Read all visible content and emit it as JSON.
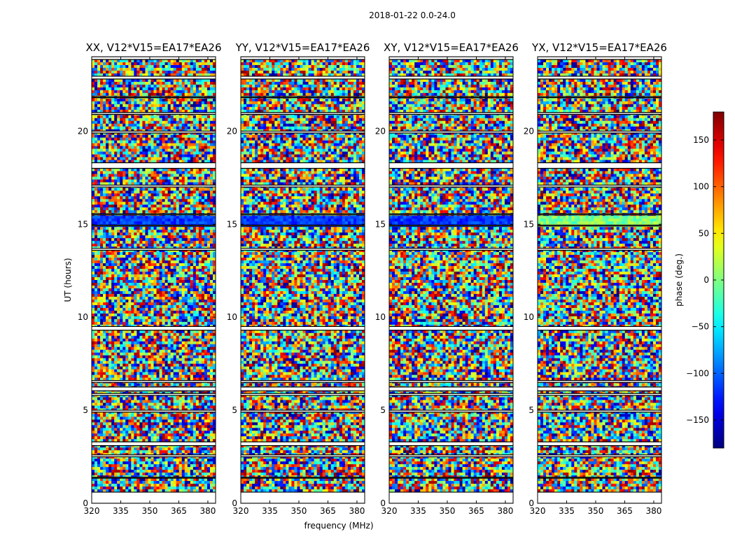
{
  "chart_data": {
    "type": "heatmap",
    "suptitle": "2018-01-22 0.0-24.0",
    "shared_xlabel": "frequency (MHz)",
    "ylabel": "UT (hours)",
    "xlim": [
      320,
      384
    ],
    "ylim": [
      0,
      24
    ],
    "xticks": [
      320,
      335,
      350,
      365,
      380
    ],
    "yticks": [
      0,
      5,
      10,
      15,
      20
    ],
    "panels": [
      {
        "title": "XX, V12*V15=EA17*EA26",
        "variant": "xx"
      },
      {
        "title": "YY, V12*V15=EA17*EA26",
        "variant": "yy"
      },
      {
        "title": "XY, V12*V15=EA17*EA26",
        "variant": "xy"
      },
      {
        "title": "YX, V12*V15=EA17*EA26",
        "variant": "yx"
      }
    ],
    "flagged_gaps_hours": [
      [
        0.0,
        0.6
      ],
      [
        1.35,
        1.4
      ],
      [
        2.5,
        2.6
      ],
      [
        3.1,
        3.3
      ],
      [
        4.9,
        5.0
      ],
      [
        5.8,
        5.9
      ],
      [
        6.05,
        6.25
      ],
      [
        6.5,
        6.6
      ],
      [
        9.3,
        9.5
      ],
      [
        13.6,
        13.7
      ],
      [
        14.9,
        14.95
      ],
      [
        15.5,
        15.55
      ],
      [
        17.0,
        17.1
      ],
      [
        18.0,
        18.3
      ],
      [
        19.9,
        20.0
      ],
      [
        20.9,
        21.0
      ],
      [
        21.8,
        21.85
      ],
      [
        22.8,
        22.95
      ],
      [
        23.85,
        24.0
      ]
    ],
    "colorbar": {
      "label": "phase (deg.)",
      "range": [
        -180,
        180
      ],
      "ticks": [
        -150,
        -100,
        -50,
        0,
        50,
        100,
        150
      ],
      "tick_labels": [
        "−150",
        "−100",
        "−50",
        "0",
        "50",
        "100",
        "150"
      ],
      "colormap": "jet"
    }
  }
}
